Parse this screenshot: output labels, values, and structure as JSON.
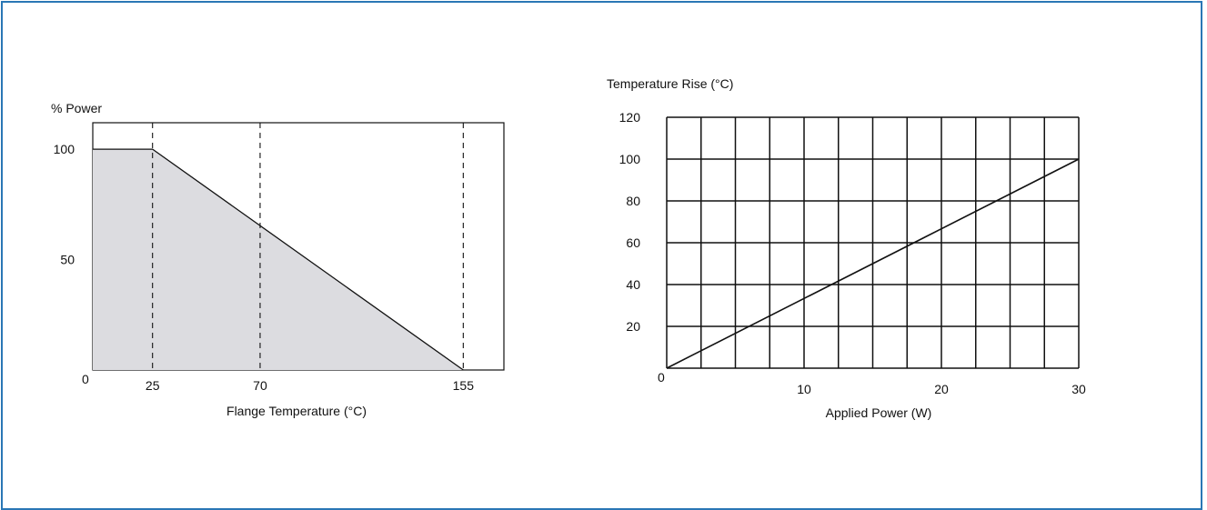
{
  "colors": {
    "frame": "#2a77b5",
    "fill": "#dcdce0",
    "line": "#111111"
  },
  "chart_data": [
    {
      "type": "area",
      "ylabel": "% Power",
      "xlabel": "Flange Temperature (°C)",
      "x_ticks": [
        "25",
        "70",
        "155"
      ],
      "y_ticks": [
        "100",
        "50"
      ],
      "origin_label": "0",
      "xlim": [
        0,
        172
      ],
      "ylim": [
        0,
        112
      ],
      "dashed_x": [
        25,
        70,
        155
      ],
      "grid": false,
      "x": [
        0,
        25,
        155
      ],
      "y": [
        100,
        100,
        0
      ]
    },
    {
      "type": "line",
      "ylabel": "Temperature Rise (°C)",
      "xlabel": "Applied Power (W)",
      "x_ticks": [
        "10",
        "20",
        "30"
      ],
      "y_ticks": [
        "20",
        "40",
        "60",
        "80",
        "100",
        "120"
      ],
      "origin_label": "0",
      "xlim": [
        0,
        30
      ],
      "ylim": [
        0,
        120
      ],
      "grid": true,
      "x": [
        0,
        30
      ],
      "y": [
        0,
        100
      ]
    }
  ]
}
